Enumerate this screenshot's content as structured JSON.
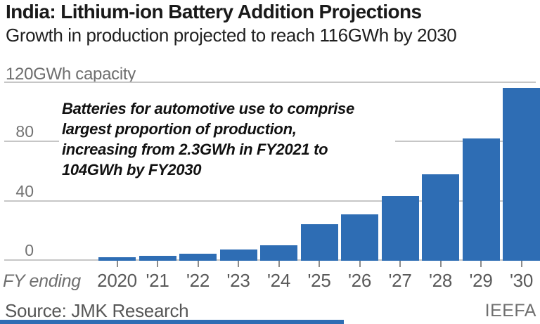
{
  "header": {
    "title": "India: Lithium-ion Battery Addition Projections",
    "subtitle": "Growth in production projected to reach 116GWh by 2030"
  },
  "chart_data": {
    "type": "bar",
    "categories": [
      "2020",
      "'21",
      "'22",
      "'23",
      "'24",
      "'25",
      "'26",
      "'27",
      "'28",
      "'29",
      "'30"
    ],
    "values": [
      2,
      3,
      4.5,
      7,
      10,
      24,
      31,
      43,
      58,
      82,
      116
    ],
    "unit": "GWh",
    "title": "India: Lithium-ion Battery Addition Projections",
    "subtitle": "Growth in production projected to reach 116GWh by 2030",
    "capacity_label": "120GWh capacity",
    "x_axis_label": "FY ending",
    "ylim": [
      0,
      120
    ],
    "yticks": [
      0,
      40,
      80
    ],
    "grid": true,
    "legend": false,
    "bar_color": "#2e6db4",
    "annotation": {
      "lines": [
        "Batteries for automotive use to comprise",
        "largest proportion of production,",
        "increasing from 2.3GWh in FY2021 to",
        "104GWh by FY2030"
      ]
    }
  },
  "footer": {
    "source": "Source: JMK Research",
    "brand": "IEEFA"
  },
  "colors": {
    "bar": "#2e6db4",
    "grid": "#c6c6c6",
    "axis_text": "#5a5a5a",
    "muted_text": "#737373",
    "title_text": "#1a1a1a",
    "bottom_strip": "#2e6db4"
  }
}
